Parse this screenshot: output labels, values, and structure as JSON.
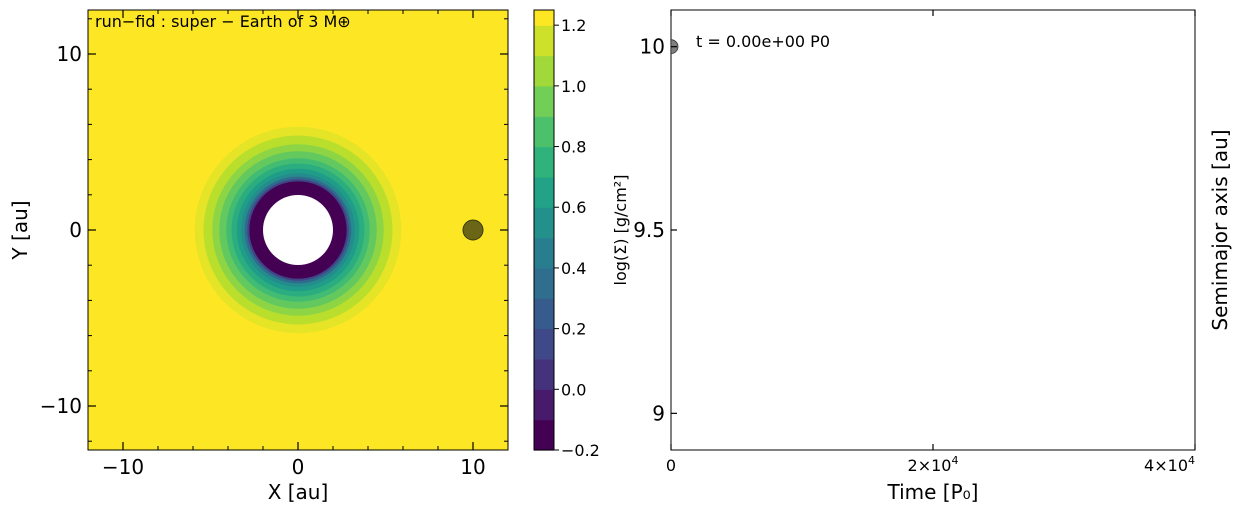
{
  "chart_data": [
    {
      "type": "heatmap",
      "title": "run−fid : super − Earth of 3 M⊕",
      "xlabel": "X [au]",
      "ylabel": "Y [au]",
      "xlim": [
        -12,
        12
      ],
      "ylim": [
        -12.5,
        12.5
      ],
      "x_ticks": [
        {
          "value": -10,
          "label": "−10"
        },
        {
          "value": 0,
          "label": "0"
        },
        {
          "value": 10,
          "label": "10"
        }
      ],
      "y_ticks": [
        {
          "value": 10,
          "label": "10"
        },
        {
          "value": 0,
          "label": "0"
        },
        {
          "value": -10,
          "label": "−10"
        }
      ],
      "colorbar": {
        "label": "log(Σ) [g/cm²]",
        "range": [
          -0.2,
          1.25
        ],
        "ticks": [
          {
            "value": 1.2,
            "label": "1.2"
          },
          {
            "value": 1.0,
            "label": "1.0"
          },
          {
            "value": 0.8,
            "label": "0.8"
          },
          {
            "value": 0.6,
            "label": "0.6"
          },
          {
            "value": 0.4,
            "label": "0.4"
          },
          {
            "value": 0.2,
            "label": "0.2"
          },
          {
            "value": 0.0,
            "label": "0.0"
          },
          {
            "value": -0.2,
            "label": "−0.2"
          }
        ],
        "levels": [
          -0.2,
          -0.1,
          0.0,
          0.1,
          0.2,
          0.3,
          0.4,
          0.5,
          0.6,
          0.7,
          0.8,
          0.9,
          1.0,
          1.1,
          1.2
        ],
        "colormap": "viridis"
      },
      "disk": {
        "inner_hole_radius_au": 2.0,
        "contours": [
          {
            "radius_au": 5.9,
            "value": 1.2
          },
          {
            "radius_au": 5.4,
            "value": 1.1
          },
          {
            "radius_au": 4.9,
            "value": 1.0
          },
          {
            "radius_au": 4.5,
            "value": 0.9
          },
          {
            "radius_au": 4.1,
            "value": 0.8
          },
          {
            "radius_au": 3.8,
            "value": 0.7
          },
          {
            "radius_au": 3.5,
            "value": 0.6
          },
          {
            "radius_au": 3.25,
            "value": 0.5
          },
          {
            "radius_au": 3.05,
            "value": 0.3
          },
          {
            "radius_au": 2.9,
            "value": 0.1
          },
          {
            "radius_au": 2.78,
            "value": -0.2
          }
        ]
      },
      "planet": {
        "x": 10,
        "y": 0,
        "color": "#6b6616"
      }
    },
    {
      "type": "scatter",
      "xlabel": "Time [P₀]",
      "ylabel": "Semimajor axis [au]",
      "xlim": [
        0,
        40000
      ],
      "ylim": [
        8.9,
        10.1
      ],
      "x_ticks": [
        {
          "value": 0,
          "label": "0",
          "sup": ""
        },
        {
          "value": 20000,
          "label": "2×10",
          "sup": "4"
        },
        {
          "value": 40000,
          "label": "4×10",
          "sup": "4"
        }
      ],
      "y_ticks": [
        {
          "value": 10,
          "label": "10"
        },
        {
          "value": 9.5,
          "label": "9.5"
        },
        {
          "value": 9,
          "label": "9"
        }
      ],
      "series": [
        {
          "x": [
            0
          ],
          "y": [
            10.0
          ],
          "color": "#555555"
        }
      ],
      "annotation": "t = 0.00e+00 P0"
    }
  ]
}
